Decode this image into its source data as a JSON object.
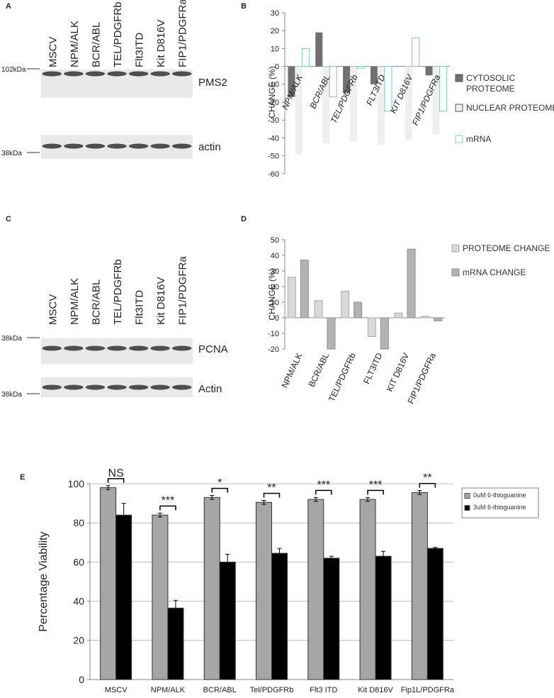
{
  "blots": [
    {
      "panel": "A",
      "lanes": [
        "MSCV",
        "NPM/ALK",
        "BCR/ABL",
        "TEL/PDGFRb",
        "Flt3ITD",
        "Kit D816V",
        "FIP1/PDGFRa"
      ],
      "markers": [
        "102kDa",
        "38kDa"
      ],
      "bands": [
        "PMS2",
        "actin"
      ]
    },
    {
      "panel": "C",
      "lanes": [
        "MSCV",
        "NPM/ALK",
        "BCR/ABL",
        "TEL/PDGFRb",
        "Flt3ITD",
        "Kit D816V",
        "FIP1/PDGFRa"
      ],
      "markers": [
        "38kDa",
        "38kDa"
      ],
      "bands": [
        "PCNA",
        "Actin"
      ]
    }
  ],
  "chart_data": [
    {
      "type": "bar",
      "panel": "B",
      "y_label": "CHANGE (%)",
      "categories": [
        "NPM/ALK",
        "BCR/ABL",
        "TEL/PDGFRb",
        "FLT3ITD",
        "KIT D816V",
        "FIP1/PDGFRa"
      ],
      "series": [
        {
          "name": "CYTOSOLIC PROTEOME",
          "color": "#707070",
          "values": [
            -17,
            19,
            -15,
            -10,
            0,
            -5
          ]
        },
        {
          "name": "NUCLEAR PROTEOME",
          "color": "#efefef",
          "values": [
            -49,
            -43,
            -42,
            -44,
            -41,
            -38
          ]
        },
        {
          "name": "mRNA",
          "color": "#ffffff",
          "edge_color": "#7fc9c9",
          "values": [
            10,
            -17,
            -1,
            -25,
            16,
            -25
          ]
        }
      ],
      "ylim": [
        -60,
        30
      ],
      "yticks": [
        -60,
        -50,
        -40,
        -30,
        -20,
        -10,
        0,
        10,
        20,
        30
      ],
      "legend": "right"
    },
    {
      "type": "bar",
      "panel": "D",
      "y_label": "CHANGE (%)",
      "categories": [
        "NPM/ALK",
        "BCR/ABL",
        "TEL/PDGFRb",
        "FLT3ITD",
        "KIT D816V",
        "FIP1/PDGFRa"
      ],
      "series": [
        {
          "name": "PROTEOME CHANGE",
          "color": "#d9d9d9",
          "edge_color": "#aaaaaa",
          "values": [
            26,
            11,
            17,
            -12,
            3,
            1
          ]
        },
        {
          "name": "mRNA CHANGE",
          "color": "#b3b3b3",
          "edge_color": "#8f8f8f",
          "values": [
            37,
            -20,
            10,
            -20,
            44,
            -2
          ]
        }
      ],
      "ylim": [
        -20,
        50
      ],
      "yticks": [
        -20,
        -10,
        0,
        10,
        20,
        30,
        40,
        50
      ],
      "legend": "right"
    },
    {
      "type": "bar",
      "panel": "E",
      "y_label": "Percentage Viability",
      "categories": [
        "MSCV",
        "NPM/ALK",
        "BCR/ABL",
        "Tel/PDGFRb",
        "Flt3 ITD",
        "Kit D816V",
        "Fip1L/PDGFRa"
      ],
      "series": [
        {
          "name": "0uM 6-thioguanine",
          "color": "#a6a6a6",
          "values": [
            98,
            84,
            93,
            90.5,
            92,
            92,
            95.5
          ],
          "errors": [
            1,
            1,
            1,
            1,
            1,
            1,
            1
          ]
        },
        {
          "name": "3uM  6-thioguanine",
          "color": "#000000",
          "values": [
            84,
            36.5,
            60,
            64.5,
            62,
            63,
            67
          ],
          "errors": [
            6,
            4,
            4,
            2.5,
            1,
            2.5,
            0.5
          ]
        }
      ],
      "annotations": [
        "NS",
        "***",
        "*",
        "**",
        "***",
        "***",
        "**"
      ],
      "ylim": [
        0,
        100
      ],
      "yticks": [
        0,
        20,
        40,
        60,
        80,
        100
      ],
      "grid": true,
      "legend": "right"
    }
  ]
}
